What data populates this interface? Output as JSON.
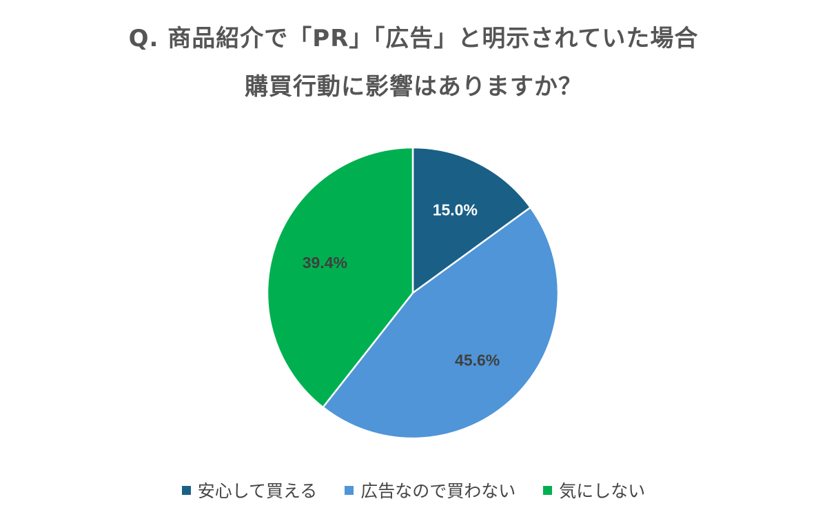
{
  "chart_data": {
    "type": "pie",
    "title_line1": "Q. 商品紹介で「PR」「広告」と明示されていた場合",
    "title_line2": "購買行動に影響はありますか？",
    "slices": [
      {
        "label": "安心して買える",
        "value": 15.0,
        "display": "15.0%",
        "color": "#1a5f86",
        "label_color": "#ffffff"
      },
      {
        "label": "広告なので買わない",
        "value": 45.6,
        "display": "45.6%",
        "color": "#4f95d8",
        "label_color": "#404040"
      },
      {
        "label": "気にしない",
        "value": 39.4,
        "display": "39.4%",
        "color": "#00b050",
        "label_color": "#404040"
      }
    ],
    "legend_position": "bottom",
    "start_angle": "12 o'clock",
    "direction": "clockwise"
  }
}
